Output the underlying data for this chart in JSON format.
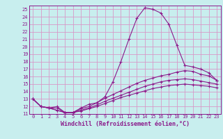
{
  "xlabel": "Windchill (Refroidissement éolien,°C)",
  "xlim": [
    -0.5,
    23.5
  ],
  "ylim": [
    11,
    25.5
  ],
  "xticks": [
    0,
    1,
    2,
    3,
    4,
    5,
    6,
    7,
    8,
    9,
    10,
    11,
    12,
    13,
    14,
    15,
    16,
    17,
    18,
    19,
    20,
    21,
    22,
    23
  ],
  "yticks": [
    11,
    12,
    13,
    14,
    15,
    16,
    17,
    18,
    19,
    20,
    21,
    22,
    23,
    24,
    25
  ],
  "bg_color": "#c8eeee",
  "grid_color": "#d898c8",
  "line_color": "#8b1a8b",
  "line1_x": [
    0,
    1,
    2,
    3,
    4,
    5,
    6,
    7,
    8,
    9,
    10,
    11,
    12,
    13,
    14,
    15,
    16,
    17,
    18,
    19,
    20,
    21,
    22,
    23
  ],
  "line1_y": [
    13.0,
    12.0,
    11.8,
    12.0,
    11.2,
    11.2,
    11.8,
    12.3,
    12.5,
    13.3,
    15.3,
    18.0,
    21.0,
    23.8,
    25.2,
    25.0,
    24.5,
    23.0,
    20.2,
    17.5,
    17.3,
    17.0,
    16.5,
    15.5
  ],
  "line2_x": [
    0,
    1,
    2,
    3,
    4,
    5,
    6,
    7,
    8,
    9,
    10,
    11,
    12,
    13,
    14,
    15,
    16,
    17,
    18,
    19,
    20,
    21,
    22,
    23
  ],
  "line2_y": [
    13.0,
    12.0,
    11.8,
    11.8,
    11.2,
    11.2,
    11.7,
    12.0,
    12.5,
    13.1,
    13.6,
    14.1,
    14.6,
    15.1,
    15.5,
    15.8,
    16.1,
    16.3,
    16.6,
    16.8,
    16.7,
    16.3,
    16.1,
    15.5
  ],
  "line3_x": [
    0,
    1,
    2,
    3,
    4,
    5,
    6,
    7,
    8,
    9,
    10,
    11,
    12,
    13,
    14,
    15,
    16,
    17,
    18,
    19,
    20,
    21,
    22,
    23
  ],
  "line3_y": [
    13.0,
    12.0,
    11.8,
    11.5,
    11.2,
    11.2,
    11.5,
    11.8,
    12.2,
    12.7,
    13.1,
    13.5,
    13.9,
    14.3,
    14.7,
    15.0,
    15.3,
    15.5,
    15.6,
    15.7,
    15.6,
    15.4,
    15.2,
    15.0
  ],
  "line4_x": [
    0,
    1,
    2,
    3,
    4,
    5,
    6,
    7,
    8,
    9,
    10,
    11,
    12,
    13,
    14,
    15,
    16,
    17,
    18,
    19,
    20,
    21,
    22,
    23
  ],
  "line4_y": [
    13.0,
    12.0,
    11.8,
    11.5,
    11.2,
    11.2,
    11.4,
    11.7,
    12.0,
    12.4,
    12.8,
    13.2,
    13.5,
    13.8,
    14.1,
    14.4,
    14.6,
    14.8,
    14.9,
    15.0,
    14.9,
    14.8,
    14.7,
    14.5
  ],
  "marker": "+",
  "markersize": 3,
  "linewidth": 0.8,
  "tick_fontsize": 5.0,
  "label_fontsize": 6.0
}
